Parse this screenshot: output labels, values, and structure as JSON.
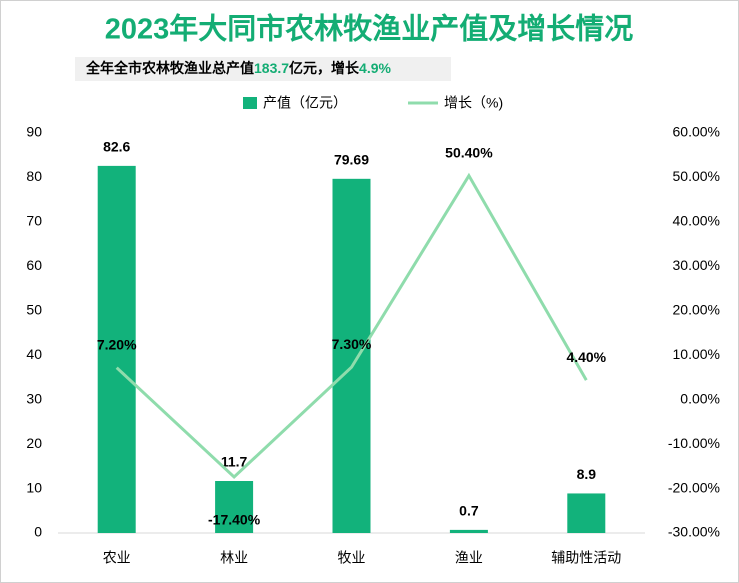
{
  "chart_data": {
    "type": "bar-line",
    "title": "2023年大同市农林牧渔业产值及增长情况",
    "subtitle": [
      "全年全市农林牧渔业总产值",
      "183.7",
      "亿元，增长",
      "4.9%"
    ],
    "categories": [
      "农业",
      "林业",
      "牧业",
      "渔业",
      "辅助性活动"
    ],
    "series": [
      {
        "name": "产值（亿元）",
        "type": "bar",
        "color": "#12b27b",
        "values": [
          82.6,
          11.7,
          79.69,
          0.7,
          8.9
        ]
      },
      {
        "name": "增长（%)",
        "type": "line",
        "axis": "y2",
        "color": "#8fdcac",
        "values": [
          7.2,
          -17.4,
          7.3,
          50.4,
          4.4
        ],
        "value_labels": [
          "7.20%",
          "-17.40%",
          "7.30%",
          "50.40%",
          "4.40%"
        ]
      }
    ],
    "ylim": [
      0,
      90
    ],
    "yticks": [
      0,
      10,
      20,
      30,
      40,
      50,
      60,
      70,
      80,
      90
    ],
    "y2lim": [
      -30,
      60
    ],
    "y2ticks": [
      {
        "value": -30,
        "label": "-30.00%"
      },
      {
        "value": -20,
        "label": "-20.00%"
      },
      {
        "value": -10,
        "label": "-10.00%"
      },
      {
        "value": 0,
        "label": "0.00%"
      },
      {
        "value": 10,
        "label": "10.00%"
      },
      {
        "value": 20,
        "label": "20.00%"
      },
      {
        "value": 30,
        "label": "30.00%"
      },
      {
        "value": 40,
        "label": "40.00%"
      },
      {
        "value": 50,
        "label": "50.00%"
      },
      {
        "value": 60,
        "label": "60.00%"
      }
    ],
    "legend": "top"
  }
}
